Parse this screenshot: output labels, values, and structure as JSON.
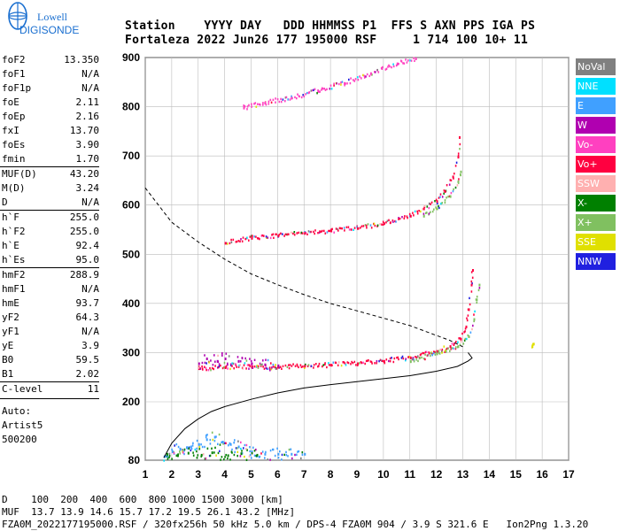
{
  "logo": {
    "top": "Lowell",
    "bottom": "DIGISONDE"
  },
  "header": {
    "line1": "Station    YYYY DAY   DDD HHMMSS P1  FFS S AXN PPS IGA PS",
    "line2": "Fortaleza 2022 Jun26 177 195000 RSF     1 714 100 10+ 11"
  },
  "params": [
    {
      "label": "foF2",
      "value": "13.350"
    },
    {
      "label": "foF1",
      "value": "N/A"
    },
    {
      "label": "foF1p",
      "value": "N/A"
    },
    {
      "label": "foE",
      "value": "2.11"
    },
    {
      "label": "foEp",
      "value": "2.16"
    },
    {
      "label": "fxI",
      "value": "13.70"
    },
    {
      "label": "foEs",
      "value": "3.90"
    },
    {
      "label": "fmin",
      "value": "1.70"
    },
    {
      "label": "MUF(D)",
      "value": "43.20",
      "sep": true
    },
    {
      "label": "M(D)",
      "value": "3.24"
    },
    {
      "label": "D",
      "value": "N/A"
    },
    {
      "label": "h`F",
      "value": "255.0",
      "sep": true
    },
    {
      "label": "h`F2",
      "value": "255.0"
    },
    {
      "label": "h`E",
      "value": "92.4"
    },
    {
      "label": "h`Es",
      "value": "95.0"
    },
    {
      "label": "hmF2",
      "value": "288.9",
      "sep": true
    },
    {
      "label": "hmF1",
      "value": "N/A"
    },
    {
      "label": "hmE",
      "value": "93.7"
    },
    {
      "label": "yF2",
      "value": "64.3"
    },
    {
      "label": "yF1",
      "value": "N/A"
    },
    {
      "label": "yE",
      "value": "3.9"
    },
    {
      "label": "B0",
      "value": "59.5"
    },
    {
      "label": "B1",
      "value": "2.02"
    },
    {
      "label": "C-level",
      "value": "11",
      "sep": true
    }
  ],
  "autoscale": {
    "line1": "Auto:",
    "line2": "Artist5",
    "line3": "500200"
  },
  "legend": [
    {
      "label": "NoVal",
      "color": "#808080"
    },
    {
      "label": "NNE",
      "color": "#00e0ff"
    },
    {
      "label": "E",
      "color": "#40a0ff"
    },
    {
      "label": "W",
      "color": "#b000b0"
    },
    {
      "label": "Vo-",
      "color": "#ff40c0"
    },
    {
      "label": "Vo+",
      "color": "#ff0040"
    },
    {
      "label": "SSW",
      "color": "#ffb0b0"
    },
    {
      "label": "X-",
      "color": "#008000"
    },
    {
      "label": "X+",
      "color": "#80c060"
    },
    {
      "label": "SSE",
      "color": "#e0e000"
    },
    {
      "label": "NNW",
      "color": "#2020e0"
    }
  ],
  "footer": {
    "line1": "D    100  200  400  600  800 1000 1500 3000 [km]",
    "line2": "MUF  13.7 13.9 14.6 15.7 17.2 19.5 26.1 43.2 [MHz]",
    "line3": "FZA0M_2022177195000.RSF / 320fx256h 50 kHz 5.0 km / DPS-4 FZA0M 904 / 3.9 S 321.6 E   Ion2Png 1.3.20"
  },
  "chart_data": {
    "type": "scatter",
    "xlim": [
      1,
      17
    ],
    "ylim": [
      80,
      900
    ],
    "xticks": [
      1,
      2,
      3,
      4,
      5,
      6,
      7,
      8,
      9,
      10,
      11,
      12,
      13,
      14,
      15,
      16,
      17
    ],
    "yticks": [
      80,
      200,
      300,
      400,
      500,
      600,
      700,
      800,
      900
    ],
    "grid": true,
    "traces": [
      {
        "name": "O-trace F2 (1st hop)",
        "color": "#ff0040",
        "points": [
          [
            3.0,
            270
          ],
          [
            4,
            272
          ],
          [
            5,
            273
          ],
          [
            6,
            273
          ],
          [
            7,
            275
          ],
          [
            8,
            277
          ],
          [
            9,
            280
          ],
          [
            10,
            285
          ],
          [
            11,
            292
          ],
          [
            12,
            305
          ],
          [
            12.5,
            315
          ],
          [
            12.9,
            330
          ],
          [
            13.1,
            355
          ],
          [
            13.2,
            390
          ],
          [
            13.3,
            440
          ],
          [
            13.35,
            470
          ]
        ]
      },
      {
        "name": "X-trace F2",
        "color": "#80c060",
        "points": [
          [
            11,
            285
          ],
          [
            12,
            300
          ],
          [
            12.8,
            315
          ],
          [
            13.2,
            335
          ],
          [
            13.4,
            370
          ],
          [
            13.5,
            410
          ],
          [
            13.6,
            440
          ]
        ]
      },
      {
        "name": "Spread F region",
        "color": "#b000b0",
        "points": [
          [
            3.0,
            280
          ],
          [
            3.3,
            290
          ],
          [
            3.7,
            285
          ],
          [
            4.0,
            290
          ],
          [
            4.5,
            285
          ],
          [
            5,
            280
          ],
          [
            5.5,
            278
          ],
          [
            6,
            276
          ]
        ]
      },
      {
        "name": "2nd hop F2",
        "color": "#ff0040",
        "points": [
          [
            4,
            525
          ],
          [
            5,
            535
          ],
          [
            6,
            540
          ],
          [
            7,
            545
          ],
          [
            8,
            550
          ],
          [
            9,
            555
          ],
          [
            10,
            565
          ],
          [
            11,
            580
          ],
          [
            11.5,
            595
          ],
          [
            12,
            610
          ],
          [
            12.3,
            630
          ],
          [
            12.6,
            660
          ],
          [
            12.8,
            700
          ],
          [
            12.85,
            740
          ]
        ]
      },
      {
        "name": "2nd hop X",
        "color": "#80c060",
        "points": [
          [
            11.5,
            580
          ],
          [
            12,
            595
          ],
          [
            12.5,
            620
          ],
          [
            12.8,
            650
          ],
          [
            12.9,
            670
          ]
        ]
      },
      {
        "name": "3rd hop",
        "color": "#ff40c0",
        "points": [
          [
            4.7,
            800
          ],
          [
            5.5,
            810
          ],
          [
            6.5,
            820
          ],
          [
            7.5,
            835
          ],
          [
            8.5,
            850
          ],
          [
            9.5,
            870
          ],
          [
            10.5,
            890
          ],
          [
            11.2,
            900
          ]
        ]
      },
      {
        "name": "E/Es layer",
        "color": "#40a0ff",
        "points": [
          [
            1.7,
            90
          ],
          [
            2,
            100
          ],
          [
            2.3,
            105
          ],
          [
            2.7,
            110
          ],
          [
            3.0,
            115
          ],
          [
            3.3,
            125
          ],
          [
            3.6,
            130
          ],
          [
            3.9,
            120
          ],
          [
            4.2,
            115
          ],
          [
            4.5,
            110
          ],
          [
            5,
            100
          ],
          [
            5.5,
            95
          ],
          [
            6,
            95
          ],
          [
            6.5,
            95
          ],
          [
            7,
            95
          ]
        ]
      },
      {
        "name": "Low clutter",
        "color": "#008000",
        "points": [
          [
            1.8,
            95
          ],
          [
            2.2,
            92
          ],
          [
            2.6,
            97
          ],
          [
            3.1,
            93
          ],
          [
            3.5,
            98
          ],
          [
            4.1,
            92
          ],
          [
            4.6,
            96
          ],
          [
            5.2,
            93
          ]
        ]
      },
      {
        "name": "Isolated SSE",
        "color": "#e0e000",
        "points": [
          [
            15.6,
            315
          ],
          [
            15.65,
            320
          ]
        ]
      }
    ],
    "profile": [
      [
        1.7,
        85
      ],
      [
        2.0,
        115
      ],
      [
        2.5,
        145
      ],
      [
        3.0,
        165
      ],
      [
        3.5,
        180
      ],
      [
        4.0,
        190
      ],
      [
        5,
        205
      ],
      [
        6,
        218
      ],
      [
        7,
        228
      ],
      [
        8,
        235
      ],
      [
        9,
        241
      ],
      [
        10,
        247
      ],
      [
        11,
        253
      ],
      [
        12,
        262
      ],
      [
        12.8,
        272
      ],
      [
        13.2,
        283
      ],
      [
        13.35,
        289
      ],
      [
        13.2,
        300
      ]
    ],
    "muf_curve": [
      [
        1,
        635
      ],
      [
        1.5,
        600
      ],
      [
        2,
        565
      ],
      [
        3,
        525
      ],
      [
        4,
        490
      ],
      [
        5,
        460
      ],
      [
        6,
        438
      ],
      [
        7,
        418
      ],
      [
        8,
        400
      ],
      [
        9,
        385
      ],
      [
        10,
        370
      ],
      [
        11,
        355
      ],
      [
        12,
        335
      ],
      [
        12.5,
        325
      ],
      [
        13.0,
        312
      ]
    ]
  }
}
